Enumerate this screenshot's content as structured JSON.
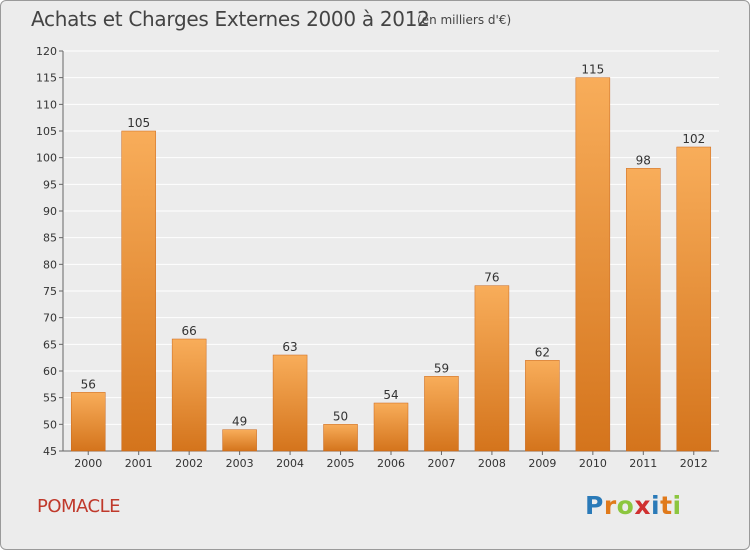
{
  "title": "Achats et Charges Externes 2000 à 2012",
  "subtitle": "(en milliers d'€)",
  "town": "POMACLE",
  "logo": {
    "letters": [
      "P",
      "r",
      "o",
      "x",
      "i",
      "t",
      "i"
    ],
    "colors": [
      "#2a7ab8",
      "#e07a1b",
      "#8cc63f",
      "#d03030",
      "#2a7ab8",
      "#e07a1b",
      "#8cc63f"
    ]
  },
  "colors": {
    "bar_light": "#f8ad5a",
    "bar_dark": "#d4741c",
    "grid": "#ffffff",
    "axis_text": "#333333"
  },
  "chart_data": {
    "type": "bar",
    "categories": [
      "2000",
      "2001",
      "2002",
      "2003",
      "2004",
      "2005",
      "2006",
      "2007",
      "2008",
      "2009",
      "2010",
      "2011",
      "2012"
    ],
    "values": [
      56,
      105,
      66,
      49,
      63,
      50,
      54,
      59,
      76,
      62,
      115,
      98,
      102
    ],
    "ylim": [
      45,
      120
    ],
    "yticks": [
      45,
      50,
      55,
      60,
      65,
      70,
      75,
      80,
      85,
      90,
      95,
      100,
      105,
      110,
      115,
      120
    ],
    "grid": true,
    "data_labels": true
  }
}
